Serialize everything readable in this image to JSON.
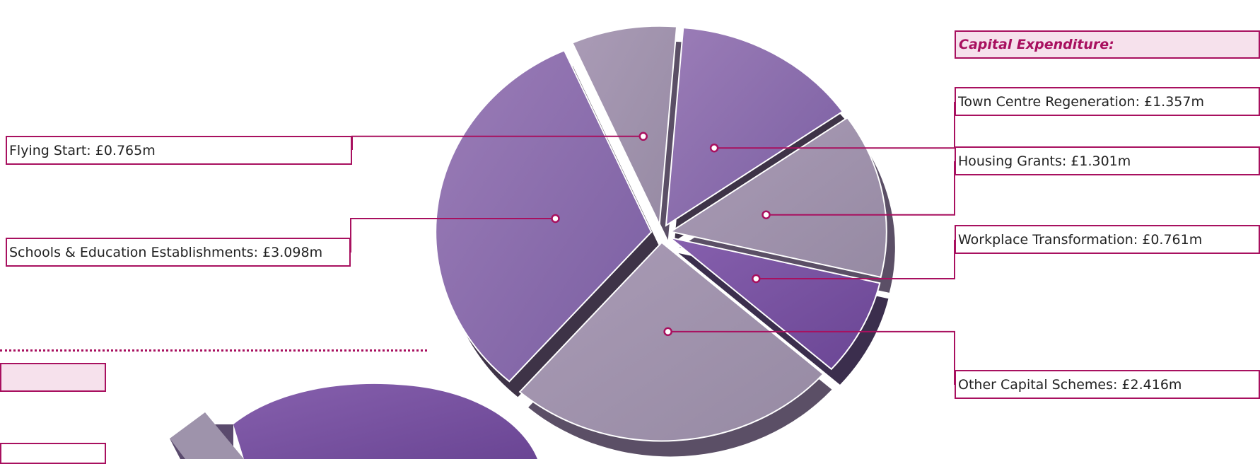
{
  "heading": "Capital Expenditure:",
  "colors": {
    "accent": "#a8105f",
    "heading_bg": "#f6e1ec",
    "slice_dark": "#7b5ea3",
    "slice_light": "#a08fae"
  },
  "chart_data": {
    "type": "pie",
    "title": "Capital Expenditure:",
    "unit": "£m",
    "categories": [
      "Town Centre Regeneration",
      "Housing Grants",
      "Workplace Transformation",
      "Other Capital Schemes",
      "Schools & Education Establishments",
      "Flying Start"
    ],
    "values": [
      1.357,
      1.301,
      0.761,
      2.416,
      3.098,
      0.765
    ],
    "labels": [
      "Town Centre Regeneration: £1.357m",
      "Housing Grants: £1.301m",
      "Workplace Transformation: £0.761m",
      "Other Capital Schemes: £2.416m",
      "Schools & Education Establishments: £3.098m",
      "Flying Start: £0.765m"
    ],
    "exploded": true,
    "style": "3d"
  }
}
